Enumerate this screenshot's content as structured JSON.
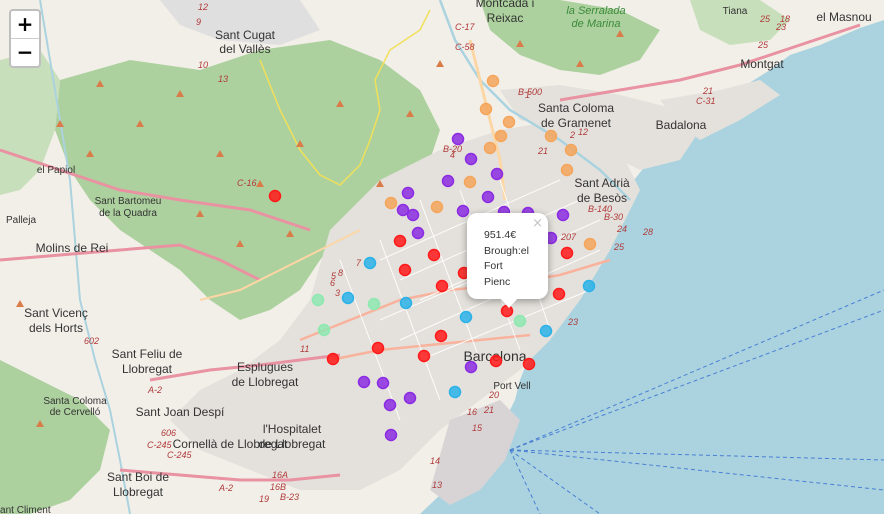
{
  "controls": {
    "zoom_in": "+",
    "zoom_out": "−"
  },
  "popup": {
    "lines": [
      "951.4€",
      "Brough:el",
      "Fort",
      "Pienc"
    ],
    "close": "×"
  },
  "places": {
    "montcada": "Montcada i",
    "reixac": "Reixac",
    "serralada1": "la Serralada",
    "serralada2": "de Marina",
    "tiana": "Tiana",
    "masnou": "el Masnou",
    "santcugat1": "Sant Cugat",
    "santcugat2": "del Vallès",
    "montgat": "Montgat",
    "santacoloma1": "Santa Coloma",
    "santacoloma2": "de Gramenet",
    "badalona": "Badalona",
    "papiol": "el Papiol",
    "santadria1": "Sant Adrià",
    "santadria2": "de Besòs",
    "santbartomeu1": "Sant Bartomeu",
    "santbartomeu2": "de la Quadra",
    "palleja": "Palleja",
    "molins": "Molins de Rei",
    "santvicenc1": "Sant Vicenç",
    "santvicenc2": "dels Horts",
    "santfeliu1": "Sant Feliu de",
    "santfeliu2": "Llobregat",
    "esplugues1": "Esplugues",
    "esplugues2": "de Llobregat",
    "barcelona": "Barcelona",
    "santacolomacervello1": "Santa Coloma",
    "santacolomacervello2": "de Cervelló",
    "santjoan": "Sant Joan Despí",
    "portvell": "Port Vell",
    "hospitalet1": "l'Hospitalet",
    "hospitalet2": "de Llobregat",
    "cornella1": "Cornellà de Llobregat",
    "santboi1": "Sant Boi de",
    "santboi2": "Llobregat",
    "santcliment": "Sant Climent"
  },
  "road_labels": [
    "12",
    "9",
    "C-58",
    "10",
    "13",
    "C-17",
    "B-500",
    "B-20",
    "25",
    "23",
    "25",
    "18",
    "21",
    "28",
    "C-245",
    "A-2",
    "606",
    "602",
    "C-16",
    "C-245",
    "16A",
    "16B",
    "19",
    "11",
    "4",
    "7",
    "8",
    "3",
    "6",
    "5",
    "207",
    "25",
    "23",
    "24",
    "21",
    "20",
    "16",
    "15",
    "14",
    "13",
    "21",
    "A-2",
    "B-23",
    "1",
    "2",
    "12",
    "C-31",
    "B-140",
    "B-30"
  ],
  "chart_data": {
    "type": "scatter",
    "title": "",
    "markers": [
      {
        "color": "#f5a55a",
        "lat_idx": 1
      },
      {
        "color": "#f5a55a",
        "lat_idx": 2
      },
      {
        "color": "#f5a55a",
        "lat_idx": 3
      },
      {
        "color": "#f5a55a",
        "lat_idx": 4
      },
      {
        "color": "#f5a55a",
        "lat_idx": 5
      },
      {
        "color": "#f5a55a",
        "lat_idx": 6
      },
      {
        "color": "#f5a55a",
        "lat_idx": 7
      },
      {
        "color": "#f5a55a",
        "lat_idx": 8
      },
      {
        "color": "#f5a55a",
        "lat_idx": 9
      },
      {
        "color": "#f5a55a",
        "lat_idx": 10
      },
      {
        "color": "#f5a55a",
        "lat_idx": 11
      },
      {
        "color": "#f5a55a",
        "lat_idx": 12
      },
      {
        "color": "#f5a55a",
        "lat_idx": 13
      },
      {
        "color": "#8b2be2",
        "lat_idx": 14
      },
      {
        "color": "#8b2be2",
        "lat_idx": 15
      },
      {
        "color": "#8b2be2",
        "lat_idx": 16
      },
      {
        "color": "#8b2be2",
        "lat_idx": 17
      },
      {
        "color": "#8b2be2",
        "lat_idx": 18
      },
      {
        "color": "#8b2be2",
        "lat_idx": 19
      },
      {
        "color": "#8b2be2",
        "lat_idx": 20
      },
      {
        "color": "#8b2be2",
        "lat_idx": 21
      },
      {
        "color": "#8b2be2",
        "lat_idx": 22
      },
      {
        "color": "#8b2be2",
        "lat_idx": 23
      },
      {
        "color": "#8b2be2",
        "lat_idx": 24
      },
      {
        "color": "#8b2be2",
        "lat_idx": 25
      },
      {
        "color": "#8b2be2",
        "lat_idx": 26
      },
      {
        "color": "#8b2be2",
        "lat_idx": 27
      },
      {
        "color": "#8b2be2",
        "lat_idx": 28
      },
      {
        "color": "#8b2be2",
        "lat_idx": 29
      },
      {
        "color": "#8b2be2",
        "lat_idx": 30
      },
      {
        "color": "#8b2be2",
        "lat_idx": 31
      },
      {
        "color": "#8b2be2",
        "lat_idx": 32
      },
      {
        "color": "#8b2be2",
        "lat_idx": 33
      },
      {
        "color": "#ff1a1a",
        "lat_idx": 34
      },
      {
        "color": "#ff1a1a",
        "lat_idx": 35
      },
      {
        "color": "#ff1a1a",
        "lat_idx": 36
      },
      {
        "color": "#ff1a1a",
        "lat_idx": 37
      },
      {
        "color": "#ff1a1a",
        "lat_idx": 38
      },
      {
        "color": "#ff1a1a",
        "lat_idx": 39
      },
      {
        "color": "#ff1a1a",
        "lat_idx": 40
      },
      {
        "color": "#ff1a1a",
        "lat_idx": 41
      },
      {
        "color": "#ff1a1a",
        "lat_idx": 42
      },
      {
        "color": "#ff1a1a",
        "lat_idx": 43
      },
      {
        "color": "#ff1a1a",
        "lat_idx": 44
      },
      {
        "color": "#ff1a1a",
        "lat_idx": 45
      },
      {
        "color": "#ff1a1a",
        "lat_idx": 46
      },
      {
        "color": "#ff1a1a",
        "lat_idx": 47
      },
      {
        "color": "#ff1a1a",
        "lat_idx": 48
      },
      {
        "color": "#ff1a1a",
        "lat_idx": 49
      },
      {
        "color": "#2bb2e8",
        "lat_idx": 50
      },
      {
        "color": "#2bb2e8",
        "lat_idx": 51
      },
      {
        "color": "#2bb2e8",
        "lat_idx": 52
      },
      {
        "color": "#2bb2e8",
        "lat_idx": 53
      },
      {
        "color": "#2bb2e8",
        "lat_idx": 54
      },
      {
        "color": "#2bb2e8",
        "lat_idx": 55
      },
      {
        "color": "#2bb2e8",
        "lat_idx": 56
      },
      {
        "color": "#8ee8b0",
        "lat_idx": 57
      },
      {
        "color": "#8ee8b0",
        "lat_idx": 58
      },
      {
        "color": "#8ee8b0",
        "lat_idx": 59
      },
      {
        "color": "#8ee8b0",
        "lat_idx": 60
      }
    ]
  }
}
